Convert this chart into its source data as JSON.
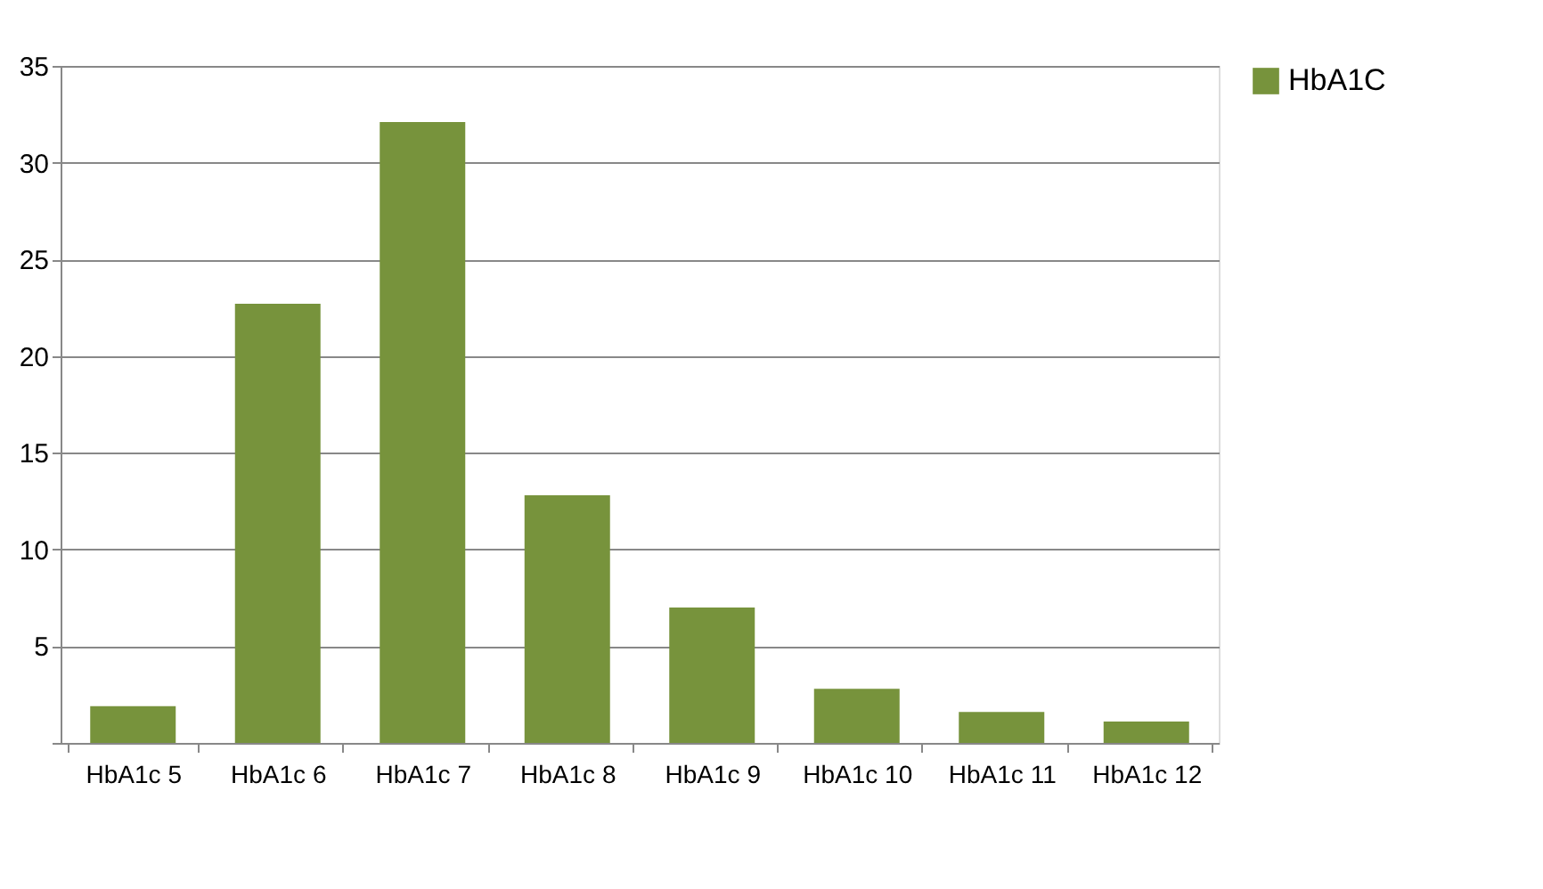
{
  "chart_data": {
    "type": "bar",
    "categories": [
      "HbA1c 5",
      "HbA1c 6",
      "HbA1c 7",
      "HbA1c 8",
      "HbA1c 9",
      "HbA1c 10",
      "HbA1c 11",
      "HbA1c 12"
    ],
    "series": [
      {
        "name": "HbA1C",
        "color": "#77933c",
        "values": [
          1.9,
          22.7,
          32.1,
          12.8,
          7.0,
          2.8,
          1.6,
          1.1
        ]
      }
    ],
    "ylim": [
      0,
      35
    ],
    "yticks": [
      {
        "value": 0,
        "label": null
      },
      5,
      10,
      15,
      20,
      25,
      30,
      35
    ],
    "grid": "y",
    "legend": "right"
  }
}
